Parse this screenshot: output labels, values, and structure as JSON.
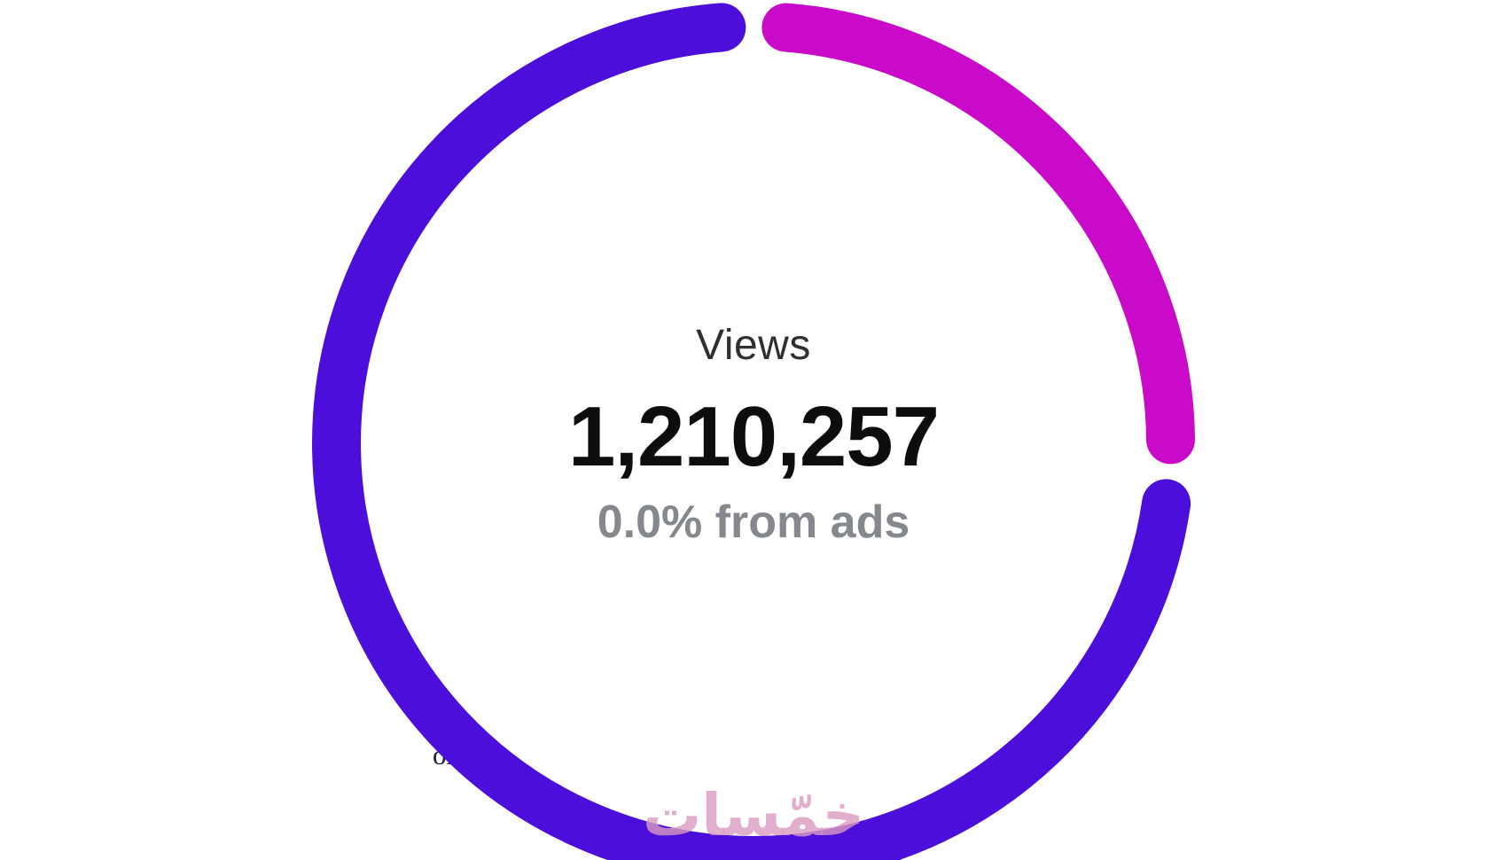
{
  "chart_data": {
    "type": "donut",
    "title": "Views",
    "center_label": "Views",
    "center_value": "1,210,257",
    "center_value_numeric": 1210257,
    "center_subtitle": "0.0% from ads",
    "legend": "none",
    "gap_between_segments_deg": 8.8,
    "segments": [
      {
        "name": "segment-magenta",
        "color": "#C90BC9",
        "start_deg": 4.5,
        "end_deg": 89.5,
        "share_pct_approx": 25.5
      },
      {
        "name": "segment-purple",
        "color": "#4C0EDA",
        "start_deg": 98.3,
        "end_deg": 355.6,
        "share_pct_approx": 73.5
      }
    ]
  },
  "watermarks": {
    "arabic_logo_text": "خمّسات",
    "partial_url_text": "om"
  },
  "colors": {
    "background": "#ffffff",
    "segment_magenta": "#C90BC9",
    "segment_purple": "#4C0EDA",
    "value_text": "#0d0d0e",
    "label_text": "#303033",
    "subtitle_text": "#85888d",
    "arabic_watermark": "rgba(217,155,192,0.8)",
    "url_watermark": "#1d1d33"
  }
}
